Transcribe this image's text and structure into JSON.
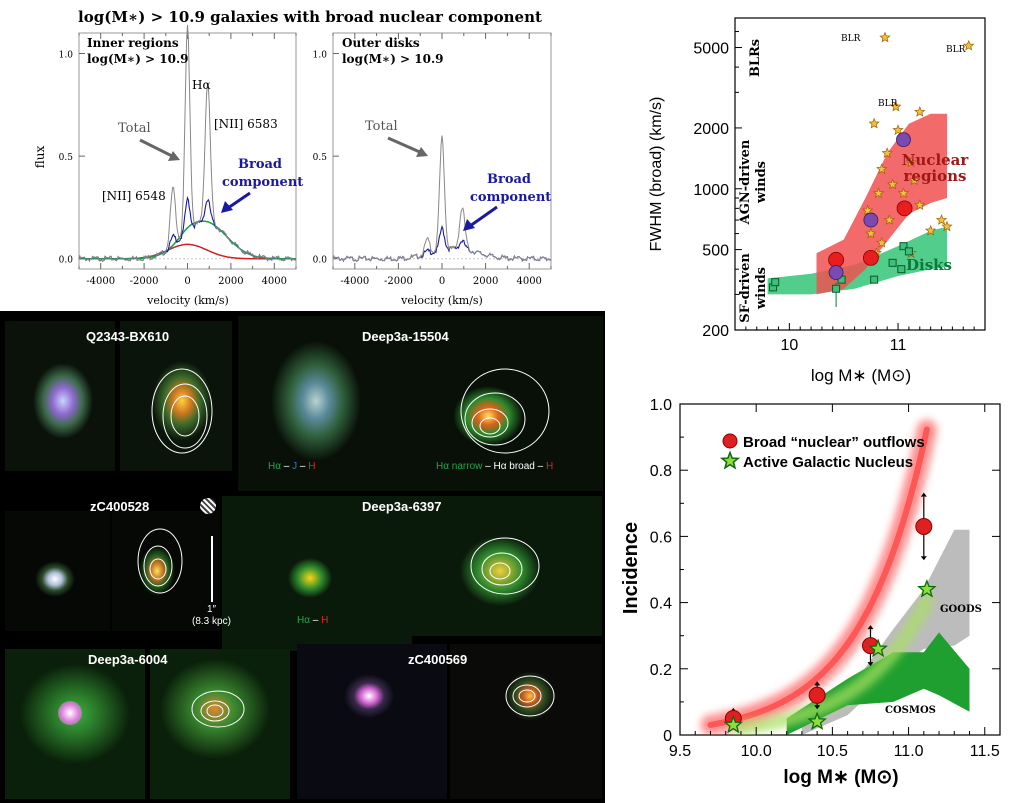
{
  "spectra": {
    "title": "log(M∗) > 10.9 galaxies with broad nuclear component",
    "ylabel": "flux",
    "xlabel": "velocity (km/s)",
    "x_ticks": [
      "-4000",
      "-2000",
      "0",
      "2000",
      "4000"
    ],
    "y_ticks": [
      "0.0",
      "0.5",
      "1.0"
    ],
    "left": {
      "title_line1": "Inner regions",
      "title_line2": "log(M∗) > 10.9",
      "halpha": "Hα",
      "nii_red": "[NII] 6583",
      "nii_blue": "[NII] 6548",
      "total": "Total",
      "broad1": "Broad",
      "broad2": "component"
    },
    "right": {
      "title_line1": "Outer disks",
      "title_line2": "log(M∗) > 10.9",
      "total": "Total",
      "broad1": "Broad",
      "broad2": "component"
    }
  },
  "images": {
    "tiles": [
      {
        "label": "Q2343-BX610"
      },
      {
        "label": "Deep3a-15504"
      },
      {
        "label": "zC400528"
      },
      {
        "label": "Deep3a-6397"
      },
      {
        "label": "Deep3a-6004"
      },
      {
        "label": "zC400569"
      }
    ],
    "legend1": {
      "a": "Hα",
      "sep1": " – ",
      "b": "J",
      "sep2": " – ",
      "c": "H"
    },
    "legend2": {
      "a": "Hα narrow",
      "sep1": " – ",
      "b": "Hα broad",
      "sep2": "  – ",
      "c": "H"
    },
    "legend3": {
      "a": "Hα",
      "sep": " – ",
      "b": "H"
    },
    "scale_line1": "1″",
    "scale_line2": "(8.3 kpc)",
    "colors": {
      "green": "#22a84a",
      "blue": "#4a6ccf",
      "red": "#e0222a",
      "white": "#ffffff"
    }
  },
  "chart_data": [
    {
      "type": "spectrum",
      "panel": "Inner regions",
      "xlim": [
        -5000,
        5000
      ],
      "ylim": [
        -0.05,
        1.1
      ],
      "lines": {
        "halpha_peak": 1.0,
        "nii6583_peak": 0.68,
        "nii6548_peak": 0.28,
        "broad_peak": 0.18,
        "broad_center": 800
      },
      "series": [
        {
          "name": "Total",
          "color": "#888888"
        },
        {
          "name": "Broad component",
          "color": "#1a1aa0"
        }
      ]
    },
    {
      "type": "spectrum",
      "panel": "Outer disks",
      "xlim": [
        -5000,
        5000
      ],
      "ylim": [
        -0.05,
        1.1
      ],
      "lines": {
        "halpha_peak": 0.55,
        "nii6583_peak": 0.2,
        "nii6548_peak": 0.07,
        "broad_peak": 0.05
      },
      "series": [
        {
          "name": "Total",
          "color": "#888888"
        },
        {
          "name": "Broad component",
          "color": "#1a1aa0"
        }
      ]
    },
    {
      "type": "scatter",
      "xlabel": "log M∗ (M⊙)",
      "ylabel": "FWHM (broad) (km/s)",
      "xlim": [
        9.5,
        11.8
      ],
      "ylim": [
        200,
        7000
      ],
      "yscale": "log",
      "x_ticks": [
        "10",
        "11"
      ],
      "y_ticks": [
        "200",
        "500",
        "1000",
        "2000",
        "5000"
      ],
      "region_labels": {
        "blr": "BLRs",
        "agn1": "AGN-driven",
        "agn2": "winds",
        "sf1": "SF-driven",
        "sf2": "winds",
        "nuclear1": "Nuclear",
        "nuclear2": "regions",
        "disks": "Disks",
        "blr_point": "BLR"
      },
      "nuclear_band": {
        "color": "#f05050",
        "upper": [
          [
            10.25,
            480
          ],
          [
            10.5,
            560
          ],
          [
            10.7,
            900
          ],
          [
            10.9,
            1500
          ],
          [
            11.1,
            2100
          ],
          [
            11.3,
            2350
          ],
          [
            11.45,
            2350
          ]
        ],
        "lower": [
          [
            10.25,
            300
          ],
          [
            10.5,
            320
          ],
          [
            10.7,
            400
          ],
          [
            10.9,
            550
          ],
          [
            11.1,
            750
          ],
          [
            11.3,
            850
          ],
          [
            11.45,
            900
          ]
        ]
      },
      "disk_band": {
        "color": "#40c880",
        "upper": [
          [
            9.8,
            360
          ],
          [
            10.2,
            380
          ],
          [
            10.6,
            420
          ],
          [
            11.0,
            520
          ],
          [
            11.3,
            620
          ],
          [
            11.45,
            650
          ]
        ],
        "lower": [
          [
            9.8,
            300
          ],
          [
            10.2,
            300
          ],
          [
            10.6,
            320
          ],
          [
            11.0,
            370
          ],
          [
            11.3,
            400
          ],
          [
            11.45,
            410
          ]
        ]
      },
      "red_points": [
        {
          "x": 10.43,
          "y": 445
        },
        {
          "x": 10.75,
          "y": 455
        },
        {
          "x": 11.06,
          "y": 800
        }
      ],
      "purple_points": [
        {
          "x": 10.43,
          "y": 385
        },
        {
          "x": 10.75,
          "y": 700
        },
        {
          "x": 11.05,
          "y": 1750
        }
      ],
      "green_points": [
        {
          "x": 9.85,
          "y": 325
        },
        {
          "x": 9.87,
          "y": 345
        },
        {
          "x": 10.43,
          "y": 320
        },
        {
          "x": 10.48,
          "y": 355
        },
        {
          "x": 10.78,
          "y": 355
        },
        {
          "x": 10.95,
          "y": 430
        },
        {
          "x": 11.03,
          "y": 400
        },
        {
          "x": 11.05,
          "y": 520
        },
        {
          "x": 11.1,
          "y": 490
        }
      ],
      "agn_stars": [
        {
          "x": 10.88,
          "y": 5600
        },
        {
          "x": 11.65,
          "y": 5100
        },
        {
          "x": 10.98,
          "y": 2550
        },
        {
          "x": 11.2,
          "y": 2400
        },
        {
          "x": 10.78,
          "y": 2100
        },
        {
          "x": 11.0,
          "y": 1950
        },
        {
          "x": 10.9,
          "y": 1500
        },
        {
          "x": 10.85,
          "y": 1250
        },
        {
          "x": 11.12,
          "y": 1350
        },
        {
          "x": 10.95,
          "y": 1050
        },
        {
          "x": 11.05,
          "y": 950
        },
        {
          "x": 11.15,
          "y": 1100
        },
        {
          "x": 10.82,
          "y": 950
        },
        {
          "x": 11.2,
          "y": 830
        },
        {
          "x": 10.72,
          "y": 780
        },
        {
          "x": 10.92,
          "y": 700
        },
        {
          "x": 10.75,
          "y": 600
        },
        {
          "x": 10.85,
          "y": 540
        },
        {
          "x": 11.3,
          "y": 620
        },
        {
          "x": 11.4,
          "y": 700
        },
        {
          "x": 11.45,
          "y": 650
        },
        {
          "x": 10.8,
          "y": 480
        },
        {
          "x": 11.12,
          "y": 480
        }
      ]
    },
    {
      "type": "line",
      "xlabel": "log M∗ (M⊙)",
      "ylabel": "Incidence",
      "xlim": [
        9.5,
        11.6
      ],
      "ylim": [
        0,
        1.0
      ],
      "x_ticks": [
        "9.5",
        "10.0",
        "10.5",
        "11.0",
        "11.5"
      ],
      "y_ticks": [
        "0",
        "0.2",
        "0.4",
        "0.6",
        "0.8",
        "1.0"
      ],
      "legend": [
        "Broad “nuclear” outflows",
        "Active Galactic Nucleus"
      ],
      "series": [
        {
          "name": "Broad “nuclear” outflows",
          "color": "#e02020",
          "x": [
            9.85,
            10.4,
            10.75,
            11.1
          ],
          "y": [
            0.05,
            0.12,
            0.27,
            0.63
          ],
          "err": [
            0.02,
            0.03,
            0.05,
            0.09
          ]
        },
        {
          "name": "Active Galactic Nucleus",
          "color": "#8fdc3a",
          "x": [
            9.85,
            10.4,
            10.8,
            11.12
          ],
          "y": [
            0.03,
            0.04,
            0.26,
            0.44
          ]
        }
      ],
      "band_labels": {
        "goods": "GOODS",
        "cosmos": "COSMOS"
      },
      "goods_band": {
        "upper": [
          [
            10.3,
            0.04
          ],
          [
            10.6,
            0.13
          ],
          [
            10.9,
            0.32
          ],
          [
            11.1,
            0.44
          ],
          [
            11.3,
            0.62
          ],
          [
            11.4,
            0.62
          ]
        ],
        "lower": [
          [
            10.3,
            0.0
          ],
          [
            10.6,
            0.06
          ],
          [
            10.9,
            0.19
          ],
          [
            11.1,
            0.26
          ],
          [
            11.3,
            0.27
          ],
          [
            11.4,
            0.3
          ]
        ]
      },
      "cosmos_band": {
        "upper": [
          [
            10.2,
            0.05
          ],
          [
            10.6,
            0.17
          ],
          [
            10.9,
            0.25
          ],
          [
            11.1,
            0.25
          ],
          [
            11.2,
            0.31
          ],
          [
            11.4,
            0.2
          ]
        ],
        "lower": [
          [
            10.2,
            0.0
          ],
          [
            10.6,
            0.09
          ],
          [
            10.9,
            0.1
          ],
          [
            11.1,
            0.14
          ],
          [
            11.2,
            0.12
          ],
          [
            11.4,
            0.07
          ]
        ]
      }
    }
  ]
}
